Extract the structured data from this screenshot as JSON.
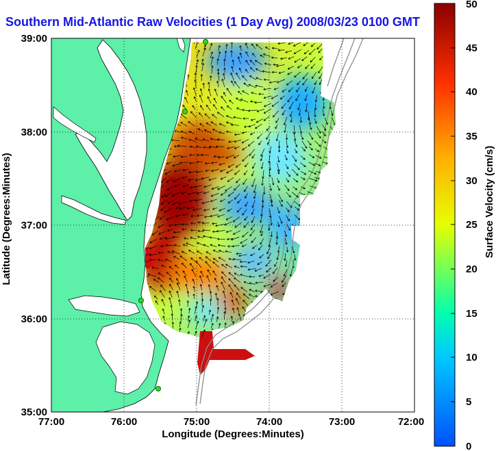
{
  "title": "Southern Mid-Atlantic Raw Velocities (1 Day Avg) 2008/03/23 0100 GMT",
  "map": {
    "x_label": "Longitude (Degrees:Minutes)",
    "y_label": "Latitude (Degrees:Minutes)",
    "x_ticks": [
      "77:00",
      "76:00",
      "75:00",
      "74:00",
      "73:00",
      "72:00"
    ],
    "y_ticks": [
      "39:00",
      "38:00",
      "37:00",
      "36:00",
      "35:00"
    ],
    "grid": "dotted",
    "land_color": "#5cf0a8",
    "arrow_color": "#000000"
  },
  "colorbar": {
    "label": "Surface Velocity (cm/s)",
    "ticks": [
      "50",
      "45",
      "40",
      "35",
      "30",
      "25",
      "20",
      "15",
      "10",
      "5",
      "0"
    ],
    "range": [
      0,
      50
    ],
    "colors": [
      "#0050ff",
      "#00c8ff",
      "#00ffb0",
      "#e6ff00",
      "#ffb000",
      "#ff3000",
      "#8b0000"
    ]
  }
}
